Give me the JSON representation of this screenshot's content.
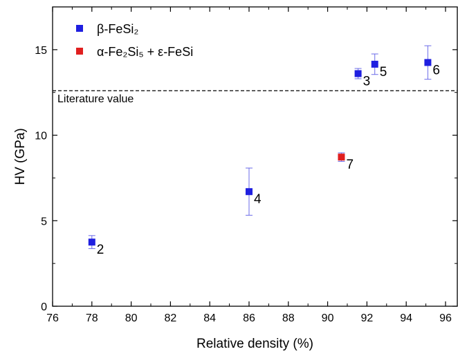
{
  "chart_data": {
    "type": "scatter",
    "title": "",
    "xlabel": "Relative density (%)",
    "ylabel": "HV (GPa)",
    "xlim": [
      76,
      96.6
    ],
    "ylim": [
      0,
      17.5
    ],
    "x_ticks": [
      76,
      78,
      80,
      82,
      84,
      86,
      88,
      90,
      92,
      94,
      96
    ],
    "y_ticks": [
      0,
      5,
      10,
      15
    ],
    "grid": false,
    "legend_position": "top-left",
    "reference_line": {
      "y": 12.6,
      "label": "Literature value",
      "style": "dashed"
    },
    "series": [
      {
        "name": "β-FeSi₂",
        "color": "#1f1fe0",
        "error_color": "#6a6ae8",
        "marker": "square",
        "points": [
          {
            "x": 78.0,
            "y": 3.75,
            "err": 0.38,
            "label": "2"
          },
          {
            "x": 91.55,
            "y": 13.6,
            "err": 0.3,
            "label": "3"
          },
          {
            "x": 86.0,
            "y": 6.7,
            "err": 1.38,
            "label": "4"
          },
          {
            "x": 92.4,
            "y": 14.15,
            "err": 0.6,
            "label": "5"
          },
          {
            "x": 95.1,
            "y": 14.25,
            "err": 0.98,
            "label": "6"
          }
        ]
      },
      {
        "name": "α-Fe₂Si₅ + ε-FeSi",
        "color": "#e01f1f",
        "error_color": "#6a6ae8",
        "marker": "square",
        "points": [
          {
            "x": 90.7,
            "y": 8.72,
            "err": 0.25,
            "label": "7"
          }
        ]
      }
    ]
  }
}
